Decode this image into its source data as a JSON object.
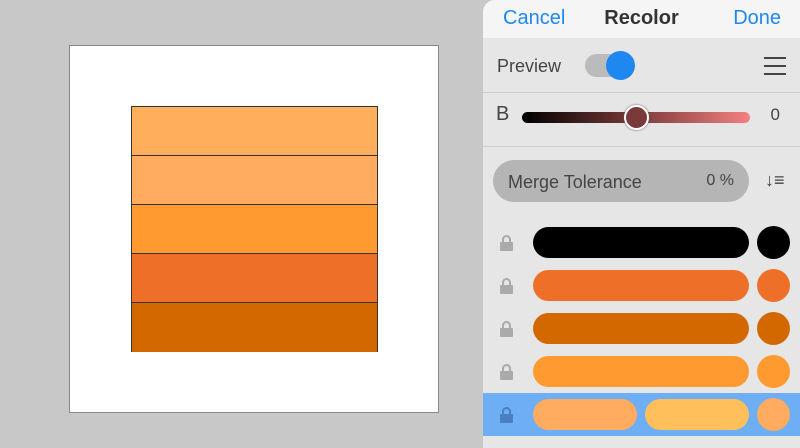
{
  "canvas": {
    "stripes": [
      "#FFAE5C",
      "#FFAB60",
      "#FF9A30",
      "#EE7028",
      "#D46800"
    ]
  },
  "header": {
    "cancel": "Cancel",
    "title": "Recolor",
    "done": "Done"
  },
  "preview": {
    "label": "Preview",
    "enabled": true,
    "menu_icon": "hamburger-icon"
  },
  "slider": {
    "label": "B",
    "value": "0",
    "position_fraction": 0.5
  },
  "merge": {
    "label": "Merge Tolerance",
    "value": "0 %",
    "sort_icon": "sort-descending-icon"
  },
  "colors": [
    {
      "pills": [
        "#000000"
      ],
      "dot": "#000000",
      "locked": false,
      "selected": false
    },
    {
      "pills": [
        "#EE7028"
      ],
      "dot": "#EE7028",
      "locked": false,
      "selected": false
    },
    {
      "pills": [
        "#D46800"
      ],
      "dot": "#D46800",
      "locked": false,
      "selected": false
    },
    {
      "pills": [
        "#FF9A30"
      ],
      "dot": "#FF9A30",
      "locked": false,
      "selected": false
    },
    {
      "pills": [
        "#FFAB60",
        "#FFC05C"
      ],
      "dot": "#FFAB60",
      "locked": false,
      "selected": true
    }
  ],
  "accent": "#1E88F0"
}
